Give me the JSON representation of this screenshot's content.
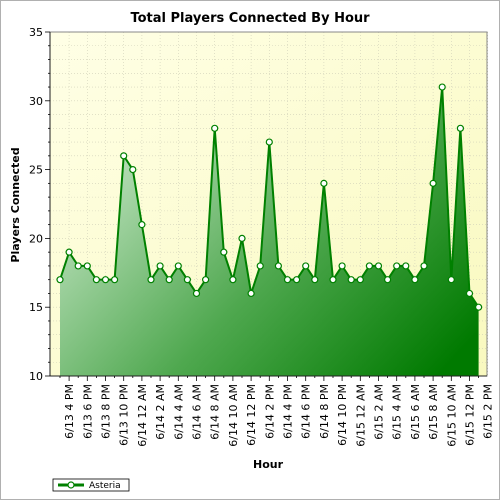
{
  "chart_data": {
    "type": "area",
    "title": "Total Players Connected By Hour",
    "xlabel": "Hour",
    "ylabel": "Players Connected",
    "ylim": [
      10,
      35
    ],
    "yticks": [
      10,
      15,
      20,
      25,
      30,
      35
    ],
    "grid": true,
    "legend_position": "bottom-left",
    "x_tick_labels": [
      "6/13 4 PM",
      "6/13 6 PM",
      "6/13 8 PM",
      "6/13 10 PM",
      "6/14 12 AM",
      "6/14 2 AM",
      "6/14 4 AM",
      "6/14 6 AM",
      "6/14 8 AM",
      "6/14 10 AM",
      "6/14 12 PM",
      "6/14 2 PM",
      "6/14 4 PM",
      "6/14 6 PM",
      "6/14 8 PM",
      "6/14 10 PM",
      "6/15 12 AM",
      "6/15 2 AM",
      "6/15 4 AM",
      "6/15 6 AM",
      "6/15 8 AM",
      "6/15 10 AM",
      "6/15 12 PM",
      "6/15 2 PM"
    ],
    "x_tick_start_hour": 1,
    "x_tick_step_hours": 2,
    "series": [
      {
        "name": "Asteria",
        "color": "#008000",
        "values": [
          17,
          19,
          18,
          18,
          17,
          17,
          17,
          26,
          25,
          21,
          17,
          18,
          17,
          18,
          17,
          16,
          17,
          28,
          19,
          17,
          20,
          16,
          18,
          27,
          18,
          17,
          17,
          18,
          17,
          24,
          17,
          18,
          17,
          17,
          18,
          18,
          17,
          18,
          18,
          17,
          18,
          24,
          31,
          17,
          28,
          16,
          15
        ]
      }
    ]
  }
}
